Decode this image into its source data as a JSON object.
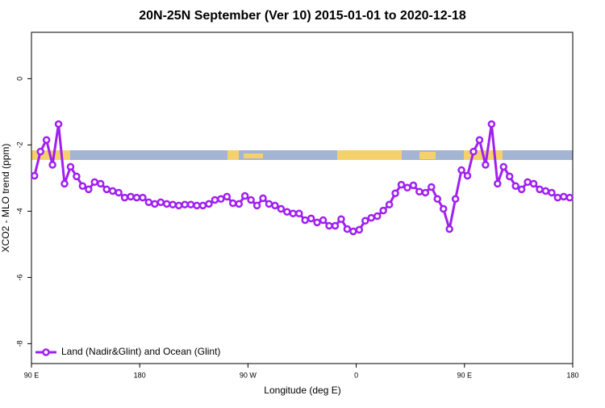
{
  "chart_data": {
    "type": "line",
    "title": "20N-25N September (Ver 10)   2015-01-01 to 2020-12-18",
    "x_label": "Longitude (deg E)",
    "y_label": "XCO2 - MLO trend (ppm)",
    "xlim": [
      90,
      540
    ],
    "xticks": [
      {
        "value": 90,
        "label": "90 E"
      },
      {
        "value": 180,
        "label": "180"
      },
      {
        "value": 270,
        "label": "90 W"
      },
      {
        "value": 360,
        "label": "0"
      },
      {
        "value": 450,
        "label": "90 E"
      },
      {
        "value": 540,
        "label": "180"
      }
    ],
    "ylim": [
      -8.6,
      1.4
    ],
    "yticks": [
      0,
      -2,
      -4,
      -6,
      -8
    ],
    "legend": "bottomleft",
    "x": [
      92.5,
      97.5,
      102.5,
      107.5,
      112.5,
      117.5,
      122.5,
      127.5,
      132.5,
      137.5,
      142.5,
      147.5,
      152.5,
      157.5,
      162.5,
      167.5,
      172.5,
      177.5,
      182.5,
      187.5,
      192.5,
      197.5,
      202.5,
      207.5,
      212.5,
      217.5,
      222.5,
      227.5,
      232.5,
      237.5,
      242.5,
      247.5,
      252.5,
      257.5,
      262.5,
      267.5,
      272.5,
      277.5,
      282.5,
      287.5,
      292.5,
      297.5,
      302.5,
      307.5,
      312.5,
      317.5,
      322.5,
      327.5,
      332.5,
      337.5,
      342.5,
      347.5,
      352.5,
      357.5,
      362.5,
      367.5,
      372.5,
      377.5,
      382.5,
      387.5,
      392.5,
      397.5,
      402.5,
      407.5,
      412.5,
      417.5,
      422.5,
      427.5,
      432.5,
      437.5,
      442.5,
      447.5,
      452.5,
      457.5,
      462.5,
      467.5,
      472.5,
      477.5,
      482.5,
      487.5,
      492.5,
      497.5,
      502.5,
      507.5,
      512.5,
      517.5,
      522.5,
      527.5,
      532.5,
      537.5
    ],
    "series": [
      {
        "name": "Land (Nadir&Glint) and Ocean (Glint)",
        "color": "#a020f0",
        "values": [
          -2.93,
          -2.2,
          -1.85,
          -2.6,
          -1.37,
          -3.17,
          -2.66,
          -2.95,
          -3.24,
          -3.34,
          -3.12,
          -3.17,
          -3.34,
          -3.39,
          -3.44,
          -3.59,
          -3.56,
          -3.59,
          -3.59,
          -3.73,
          -3.78,
          -3.73,
          -3.78,
          -3.8,
          -3.83,
          -3.8,
          -3.8,
          -3.83,
          -3.83,
          -3.78,
          -3.66,
          -3.63,
          -3.56,
          -3.76,
          -3.78,
          -3.54,
          -3.66,
          -3.83,
          -3.61,
          -3.78,
          -3.83,
          -3.93,
          -4.02,
          -4.07,
          -4.07,
          -4.27,
          -4.22,
          -4.34,
          -4.27,
          -4.44,
          -4.44,
          -4.24,
          -4.54,
          -4.61,
          -4.56,
          -4.29,
          -4.2,
          -4.15,
          -3.98,
          -3.8,
          -3.46,
          -3.2,
          -3.29,
          -3.22,
          -3.41,
          -3.44,
          -3.27,
          -3.63,
          -3.93,
          -4.54,
          -3.63,
          -2.76,
          -2.93,
          -2.2,
          -1.85,
          -2.6,
          -1.37,
          -3.17,
          -2.66,
          -2.95,
          -3.24,
          -3.34,
          -3.12,
          -3.17,
          -3.34,
          -3.39,
          -3.44,
          -3.59,
          -3.56,
          -3.59
        ]
      }
    ]
  }
}
